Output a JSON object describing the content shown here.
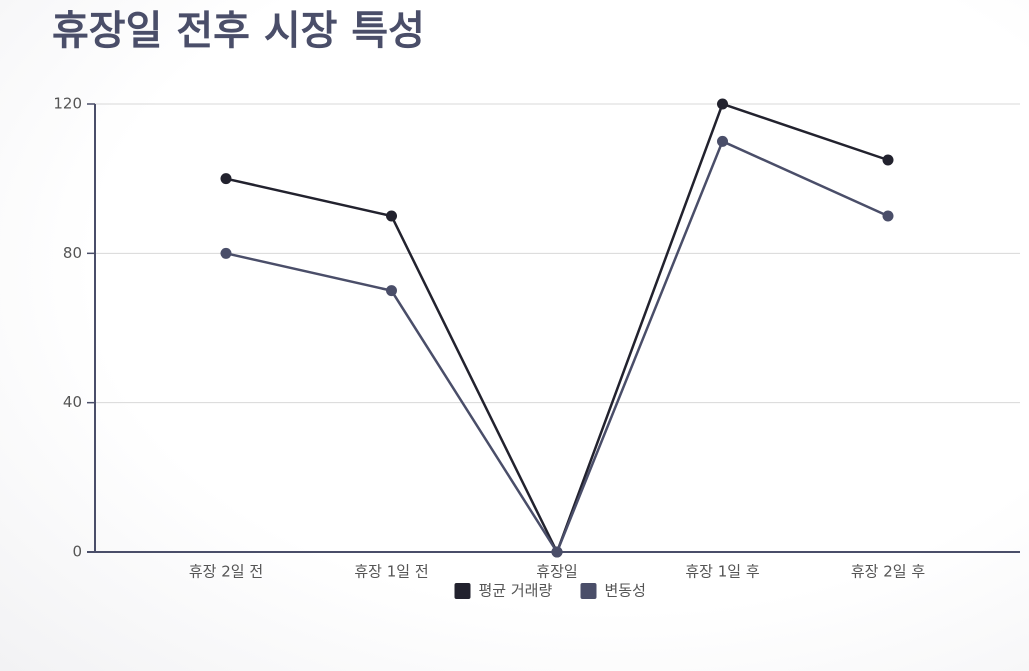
{
  "chart_data": {
    "type": "line",
    "title": "휴장일 전후 시장 특성",
    "categories": [
      "휴장 2일 전",
      "휴장 1일 전",
      "휴장일",
      "휴장 1일 후",
      "휴장 2일 후"
    ],
    "series": [
      {
        "name": "평균 거래량",
        "color": "#22222e",
        "values": [
          100,
          90,
          0,
          120,
          105
        ]
      },
      {
        "name": "변동성",
        "color": "#4a4e69",
        "values": [
          80,
          70,
          0,
          110,
          90
        ]
      }
    ],
    "ylim": [
      0,
      120
    ],
    "yticks": [
      0,
      40,
      80,
      120
    ],
    "grid": true,
    "legend": "bottom"
  }
}
